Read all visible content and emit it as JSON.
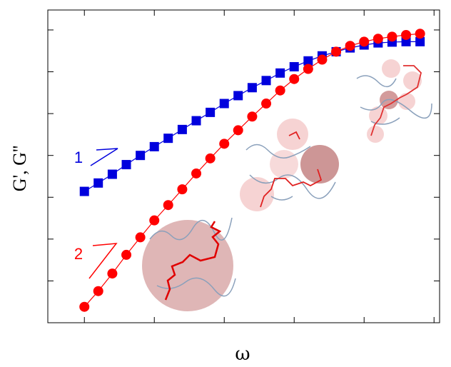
{
  "chart_data": {
    "type": "line",
    "xlabel": "ω",
    "ylabel": "G', G''",
    "xscale": "log",
    "yscale": "log",
    "xlim": [
      0.3,
      120000
    ],
    "ylim": [
      0.1,
      3000000
    ],
    "xticks": [
      1,
      10,
      100,
      1000,
      10000,
      100000
    ],
    "yticks": [
      1,
      10,
      100,
      1000,
      10000,
      100000,
      1000000
    ],
    "x": [
      1,
      1.58,
      2.51,
      3.98,
      6.31,
      10,
      15.8,
      25.1,
      39.8,
      63.1,
      100,
      158,
      251,
      398,
      631,
      1000,
      1585,
      2512,
      3981,
      6310,
      10000,
      15849,
      25119,
      39811,
      63096
    ],
    "series": [
      {
        "color": "#0000dd",
        "marker": "square",
        "values": [
          138,
          219,
          355,
          603,
          1000,
          1620,
          2570,
          4170,
          6760,
          10700,
          17400,
          26900,
          41700,
          61700,
          93300,
          132000,
          182000,
          240000,
          302000,
          372000,
          437000,
          490000,
          513000,
          525000,
          525000
        ]
      },
      {
        "color": "#ff0000",
        "marker": "circle",
        "values": [
          0.24,
          0.57,
          1.5,
          4.2,
          11,
          28,
          65,
          155,
          370,
          850,
          1900,
          4000,
          8500,
          17400,
          35700,
          67000,
          117000,
          195000,
          302000,
          417000,
          525000,
          617000,
          692000,
          759000,
          813000
        ]
      }
    ],
    "annotations": [
      "1",
      "2"
    ]
  }
}
